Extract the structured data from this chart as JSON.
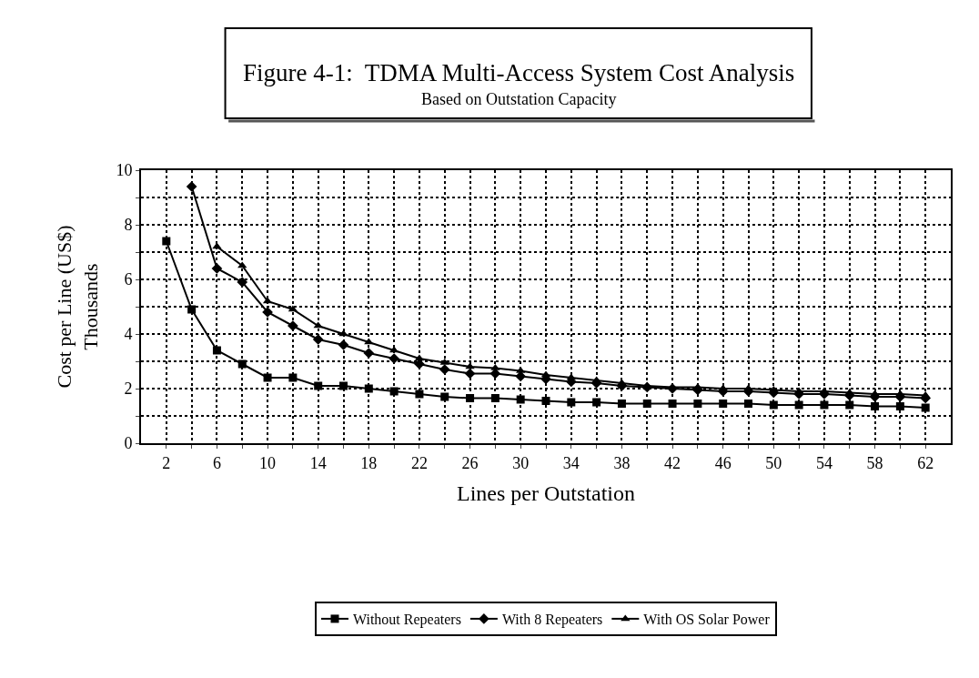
{
  "chart_data": {
    "type": "line",
    "title": "Figure 4-1:  TDMA Multi-Access System Cost Analysis",
    "subtitle": "Based on Outstation Capacity",
    "xlabel": "Lines per Outstation",
    "ylabel": "Cost per Line (US$)\nThousands",
    "x": [
      2,
      4,
      6,
      8,
      10,
      12,
      14,
      16,
      18,
      20,
      22,
      24,
      26,
      28,
      30,
      32,
      34,
      36,
      38,
      40,
      42,
      44,
      46,
      48,
      50,
      52,
      54,
      56,
      58,
      60,
      62
    ],
    "series": [
      {
        "name": "Without Repeaters",
        "color": "#000000",
        "marker": "square",
        "values": [
          7.4,
          4.9,
          3.4,
          2.9,
          2.4,
          2.4,
          2.1,
          2.1,
          2.0,
          1.9,
          1.8,
          1.7,
          1.65,
          1.65,
          1.6,
          1.55,
          1.5,
          1.5,
          1.45,
          1.45,
          1.45,
          1.45,
          1.45,
          1.45,
          1.4,
          1.4,
          1.4,
          1.4,
          1.35,
          1.35,
          1.3
        ]
      },
      {
        "name": "With 8 Repeaters",
        "color": "#000000",
        "marker": "diamond",
        "values": [
          null,
          9.4,
          6.4,
          5.9,
          4.8,
          4.3,
          3.8,
          3.6,
          3.3,
          3.1,
          2.9,
          2.7,
          2.55,
          2.55,
          2.45,
          2.35,
          2.25,
          2.2,
          2.1,
          2.05,
          2.0,
          1.95,
          1.9,
          1.9,
          1.85,
          1.8,
          1.8,
          1.75,
          1.7,
          1.7,
          1.65
        ]
      },
      {
        "name": "With OS Solar Power",
        "color": "#000000",
        "marker": "triangle",
        "values": [
          null,
          null,
          7.2,
          6.5,
          5.2,
          4.9,
          4.3,
          4.0,
          3.7,
          3.4,
          3.1,
          2.95,
          2.8,
          2.75,
          2.65,
          2.5,
          2.4,
          2.3,
          2.2,
          2.1,
          2.05,
          2.05,
          2.0,
          2.0,
          1.95,
          1.9,
          1.9,
          1.85,
          1.8,
          1.8,
          1.75
        ]
      }
    ],
    "xlim": [
      0,
      64
    ],
    "xticks": [
      2,
      {
        "value": 4,
        "label": null
      },
      6,
      {
        "value": 8,
        "label": null
      },
      10,
      {
        "value": 12,
        "label": null
      },
      14,
      {
        "value": 16,
        "label": null
      },
      18,
      {
        "value": 20,
        "label": null
      },
      22,
      {
        "value": 24,
        "label": null
      },
      26,
      {
        "value": 28,
        "label": null
      },
      30,
      {
        "value": 32,
        "label": null
      },
      34,
      {
        "value": 36,
        "label": null
      },
      38,
      {
        "value": 40,
        "label": null
      },
      42,
      {
        "value": 44,
        "label": null
      },
      46,
      {
        "value": 48,
        "label": null
      },
      50,
      {
        "value": 52,
        "label": null
      },
      54,
      {
        "value": 56,
        "label": null
      },
      58,
      {
        "value": 60,
        "label": null
      },
      62
    ],
    "ylim": [
      0,
      10
    ],
    "yticks": [
      0,
      {
        "value": 1,
        "label": null
      },
      2,
      {
        "value": 3,
        "label": null
      },
      4,
      {
        "value": 5,
        "label": null
      },
      6,
      {
        "value": 7,
        "label": null
      },
      8,
      {
        "value": 9,
        "label": null
      },
      10
    ],
    "grid": true,
    "legend": "bottom",
    "line_style": "solid"
  }
}
